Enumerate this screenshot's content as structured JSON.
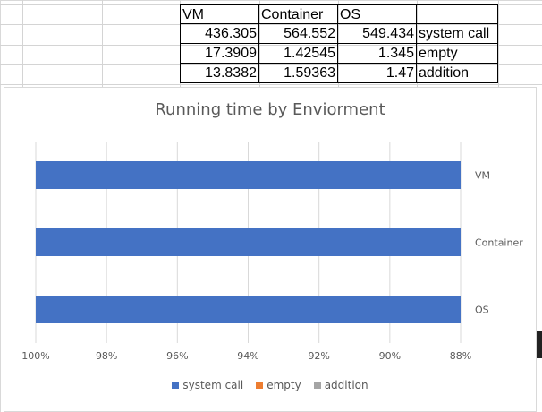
{
  "sheet": {
    "header": {
      "vm": "VM",
      "container": "Container",
      "os": "OS"
    },
    "rows": [
      {
        "vm": "436.305",
        "container": "564.552",
        "os": "549.434",
        "label": "system call"
      },
      {
        "vm": "17.3909",
        "container": "1.42545",
        "os": "1.345",
        "label": "empty"
      },
      {
        "vm": "13.8382",
        "container": "1.59363",
        "os": "1.47",
        "label": "addition"
      }
    ]
  },
  "chart_data": {
    "type": "bar",
    "orientation": "horizontal",
    "stacking": "100%",
    "x_axis_reversed": true,
    "title": "Running time by Enviorment",
    "categories": [
      "VM",
      "Container",
      "OS"
    ],
    "series": [
      {
        "name": "system call",
        "color": "#4472C4",
        "values": [
          436.305,
          564.552,
          549.434
        ]
      },
      {
        "name": "empty",
        "color": "#ED7D31",
        "values": [
          17.3909,
          1.42545,
          1.345
        ]
      },
      {
        "name": "addition",
        "color": "#A5A5A5",
        "values": [
          13.8382,
          1.59363,
          1.47
        ]
      }
    ],
    "xlim": [
      88,
      100
    ],
    "x_ticks": [
      "100%",
      "98%",
      "96%",
      "94%",
      "92%",
      "90%",
      "88%"
    ],
    "legend_position": "bottom",
    "grid": true
  }
}
